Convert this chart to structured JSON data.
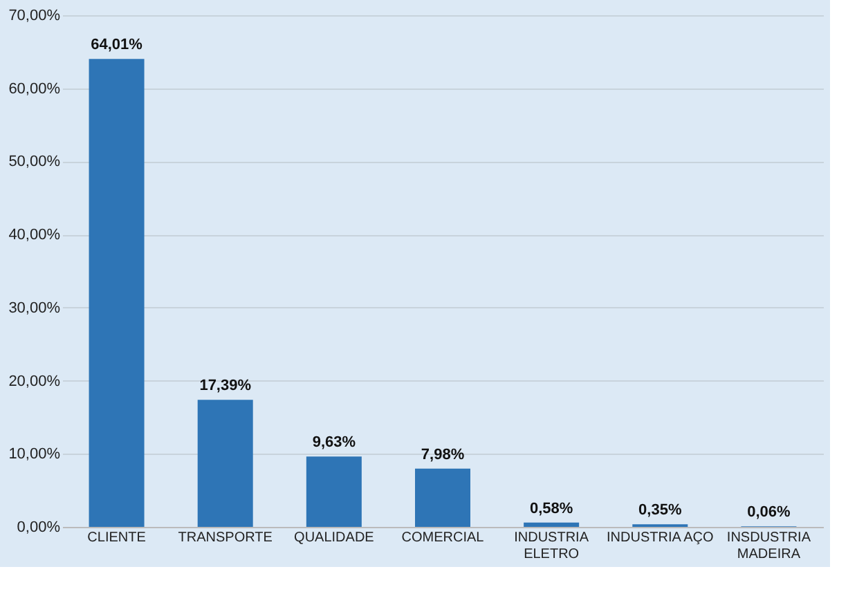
{
  "chart_data": {
    "type": "bar",
    "categories": [
      "CLIENTE",
      "TRANSPORTE",
      "QUALIDADE",
      "COMERCIAL",
      "INDUSTRIA ELETRO",
      "INDUSTRIA AÇO",
      "INSDUSTRIA MADEIRA"
    ],
    "values": [
      64.01,
      17.39,
      9.63,
      7.98,
      0.58,
      0.35,
      0.06
    ],
    "value_labels": [
      "64,01%",
      "17,39%",
      "9,63%",
      "7,98%",
      "0,58%",
      "0,35%",
      "0,06%"
    ],
    "color": "#2e75b6",
    "ylim": [
      0,
      70
    ],
    "yticks": [
      {
        "value": 0,
        "label": "0,00%"
      },
      {
        "value": 10,
        "label": "10,00%"
      },
      {
        "value": 20,
        "label": "20,00%"
      },
      {
        "value": 30,
        "label": "30,00%"
      },
      {
        "value": 40,
        "label": "40,00%"
      },
      {
        "value": 50,
        "label": "50,00%"
      },
      {
        "value": 60,
        "label": "60,00%"
      },
      {
        "value": 70,
        "label": "70,00%"
      }
    ],
    "grid": "y"
  }
}
